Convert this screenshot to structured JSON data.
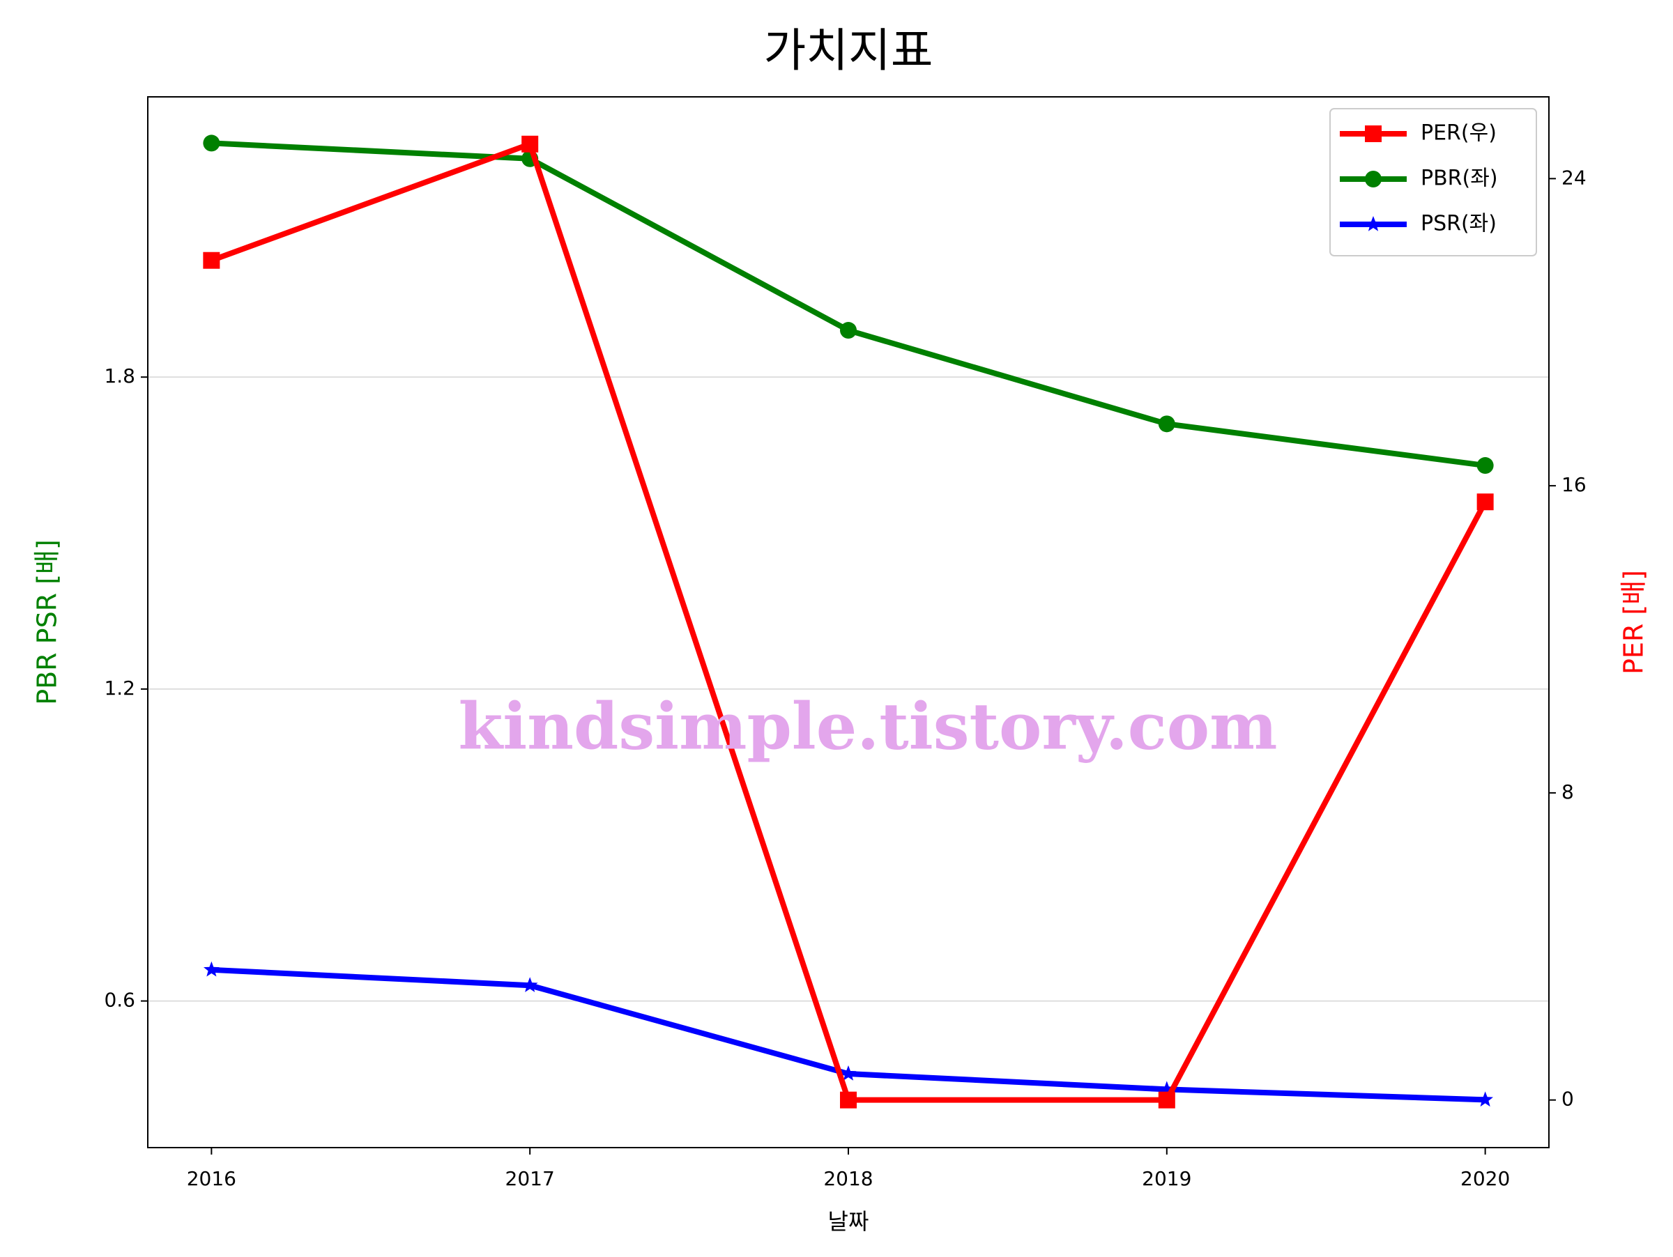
{
  "chart_data": {
    "type": "line",
    "title": "가치지표",
    "xlabel": "날짜",
    "ylabel": "PBR PSR [배]",
    "ylabel_color": "green",
    "y2label": "PER [배]",
    "y2label_color": "red",
    "watermark": "kindsimple.tistory.com",
    "x": [
      2016,
      2017,
      2018,
      2019,
      2020
    ],
    "xlim": [
      2015.8,
      2020.2
    ],
    "xticks": [
      2016,
      2017,
      2018,
      2019,
      2020
    ],
    "ylim": [
      0.318,
      2.339
    ],
    "yticks": [
      0.6,
      1.2,
      1.8
    ],
    "y2lim": [
      -1.24,
      26.13
    ],
    "y2ticks": [
      0,
      8,
      16,
      24
    ],
    "grid": true,
    "legend": "upper right",
    "series": [
      {
        "name": "PER(우)",
        "color": "red",
        "marker": "square",
        "axis": "y2",
        "values": [
          21.87,
          24.9,
          0,
          0,
          15.58
        ]
      },
      {
        "name": "PBR(좌)",
        "color": "green",
        "marker": "circle",
        "values": [
          2.25,
          2.22,
          1.89,
          1.71,
          1.63
        ]
      },
      {
        "name": "PSR(좌)",
        "color": "blue",
        "marker": "star",
        "values": [
          0.66,
          0.63,
          0.46,
          0.43,
          0.41
        ]
      }
    ]
  }
}
